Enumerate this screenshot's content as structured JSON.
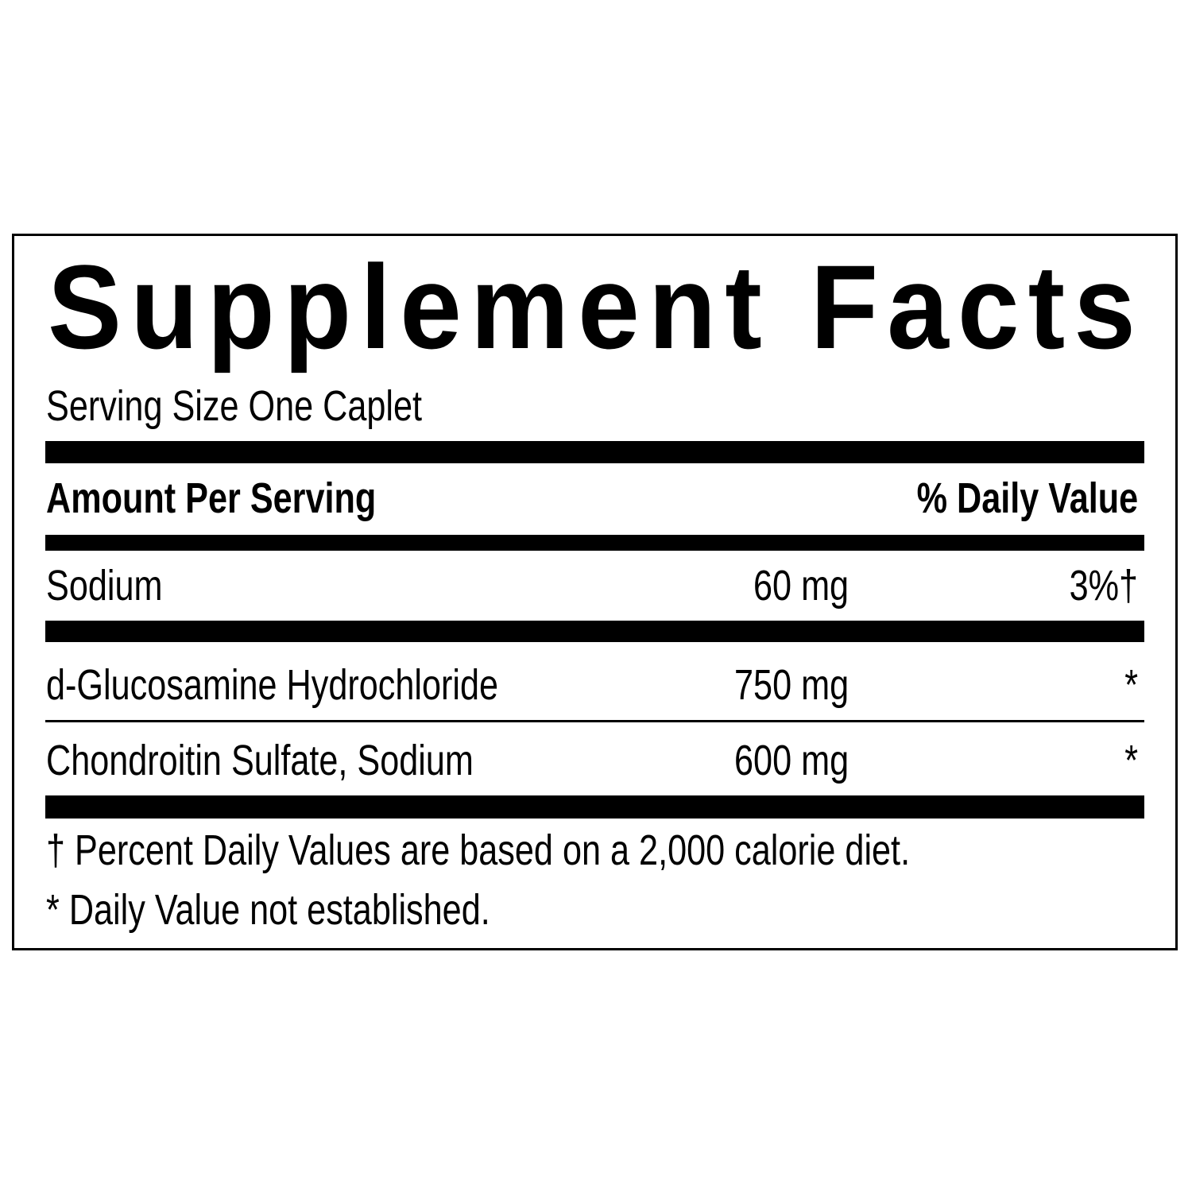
{
  "title": "Supplement Facts",
  "serving_size": "Serving Size One Caplet",
  "header": {
    "amount_label": "Amount Per Serving",
    "dv_label": "% Daily Value"
  },
  "rows": [
    {
      "name": "Sodium",
      "amount": "60 mg",
      "dv": "3%†"
    },
    {
      "name": "d-Glucosamine Hydrochloride",
      "amount": "750 mg",
      "dv": "*"
    },
    {
      "name": "Chondroitin Sulfate, Sodium",
      "amount": "600 mg",
      "dv": "*"
    }
  ],
  "footnotes": [
    "† Percent Daily Values are based on a 2,000 calorie diet.",
    "* Daily Value not established."
  ]
}
